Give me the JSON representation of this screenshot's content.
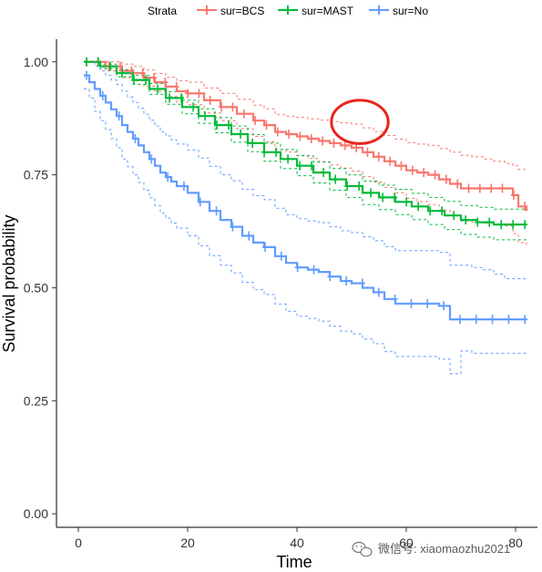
{
  "chart_data": {
    "type": "line",
    "subtype": "kaplan-meier survival curve",
    "xlabel": "Time",
    "ylabel": "Survival probability",
    "xlim": [
      -4,
      84
    ],
    "ylim": [
      -0.03,
      1.05
    ],
    "x_ticks": [
      0,
      20,
      40,
      60,
      80
    ],
    "x_tick_labels": [
      "0",
      "20",
      "40",
      "60",
      "80"
    ],
    "y_ticks": [
      0,
      0.25,
      0.5,
      0.75,
      1.0
    ],
    "y_tick_labels": [
      "0.00",
      "0.25",
      "0.50",
      "0.75",
      "1.00"
    ],
    "grid": false,
    "legend": {
      "position": "top",
      "title": "Strata",
      "entries": [
        "sur=BCS",
        "sur=MAST",
        "sur=No"
      ]
    },
    "series": [
      {
        "name": "sur=BCS",
        "color": "#F8766D",
        "x": [
          1,
          5,
          8,
          10,
          12,
          14,
          16,
          18,
          20,
          23,
          26,
          29,
          32,
          34,
          36,
          38,
          40,
          42,
          44,
          46,
          48,
          50,
          52,
          54,
          56,
          58,
          60,
          62,
          64,
          66,
          68,
          70,
          72,
          74,
          76,
          78,
          79.5,
          80.5,
          82
        ],
        "y": [
          1.0,
          0.99,
          0.98,
          0.975,
          0.965,
          0.955,
          0.945,
          0.935,
          0.93,
          0.915,
          0.9,
          0.885,
          0.87,
          0.86,
          0.845,
          0.84,
          0.835,
          0.83,
          0.825,
          0.82,
          0.815,
          0.81,
          0.8,
          0.79,
          0.78,
          0.77,
          0.76,
          0.755,
          0.75,
          0.74,
          0.73,
          0.72,
          0.72,
          0.72,
          0.72,
          0.72,
          0.705,
          0.68,
          0.67
        ],
        "upper": [
          1.0,
          1.0,
          0.995,
          0.99,
          0.982,
          0.974,
          0.966,
          0.958,
          0.955,
          0.942,
          0.93,
          0.917,
          0.904,
          0.896,
          0.883,
          0.88,
          0.877,
          0.874,
          0.871,
          0.868,
          0.865,
          0.862,
          0.854,
          0.846,
          0.837,
          0.829,
          0.821,
          0.818,
          0.815,
          0.808,
          0.8,
          0.793,
          0.79,
          0.785,
          0.78,
          0.775,
          0.77,
          0.762,
          0.76
        ],
        "lower": [
          1.0,
          0.98,
          0.965,
          0.958,
          0.946,
          0.935,
          0.923,
          0.911,
          0.905,
          0.887,
          0.87,
          0.852,
          0.835,
          0.823,
          0.806,
          0.8,
          0.793,
          0.786,
          0.779,
          0.772,
          0.765,
          0.758,
          0.746,
          0.734,
          0.722,
          0.71,
          0.698,
          0.691,
          0.684,
          0.672,
          0.66,
          0.648,
          0.646,
          0.643,
          0.64,
          0.637,
          0.62,
          0.6,
          0.595
        ]
      },
      {
        "name": "sur=MAST",
        "color": "#00BA38",
        "x": [
          1,
          4,
          7,
          10,
          13,
          16,
          19,
          22,
          25,
          28,
          31,
          34,
          37,
          40,
          43,
          46,
          49,
          52,
          55,
          58,
          61,
          64,
          67,
          70,
          73,
          76,
          79,
          82
        ],
        "y": [
          1.0,
          0.99,
          0.975,
          0.96,
          0.94,
          0.92,
          0.9,
          0.88,
          0.86,
          0.84,
          0.82,
          0.8,
          0.785,
          0.77,
          0.755,
          0.74,
          0.725,
          0.71,
          0.7,
          0.69,
          0.68,
          0.67,
          0.66,
          0.65,
          0.645,
          0.64,
          0.64,
          0.64
        ],
        "upper": [
          1.0,
          0.995,
          0.983,
          0.97,
          0.952,
          0.934,
          0.915,
          0.896,
          0.877,
          0.858,
          0.839,
          0.82,
          0.806,
          0.792,
          0.778,
          0.764,
          0.75,
          0.736,
          0.727,
          0.718,
          0.709,
          0.7,
          0.691,
          0.682,
          0.678,
          0.674,
          0.674,
          0.674
        ],
        "lower": [
          1.0,
          0.985,
          0.967,
          0.95,
          0.928,
          0.906,
          0.885,
          0.864,
          0.843,
          0.822,
          0.801,
          0.78,
          0.764,
          0.748,
          0.732,
          0.716,
          0.7,
          0.684,
          0.673,
          0.662,
          0.651,
          0.64,
          0.629,
          0.618,
          0.612,
          0.606,
          0.606,
          0.606
        ]
      },
      {
        "name": "sur=No",
        "color": "#619CFF",
        "x": [
          1,
          2,
          3,
          4,
          5,
          6,
          7,
          8,
          9,
          10,
          11,
          12,
          13,
          14,
          15,
          16,
          17,
          18,
          20,
          22,
          24,
          26,
          28,
          30,
          32,
          34,
          36,
          38,
          40,
          42,
          44,
          46,
          48,
          50,
          52,
          54,
          56,
          58,
          60,
          62,
          64,
          66,
          68,
          70,
          72,
          74,
          76,
          78,
          80,
          82
        ],
        "y": [
          0.97,
          0.955,
          0.94,
          0.925,
          0.91,
          0.895,
          0.88,
          0.86,
          0.845,
          0.83,
          0.815,
          0.8,
          0.785,
          0.77,
          0.755,
          0.745,
          0.735,
          0.725,
          0.71,
          0.69,
          0.67,
          0.65,
          0.635,
          0.615,
          0.6,
          0.59,
          0.57,
          0.555,
          0.545,
          0.54,
          0.535,
          0.525,
          0.515,
          0.51,
          0.5,
          0.49,
          0.475,
          0.465,
          0.465,
          0.465,
          0.465,
          0.46,
          0.43,
          0.43,
          0.43,
          0.43,
          0.43,
          0.43,
          0.43,
          0.43
        ],
        "upper": [
          1.0,
          1.0,
          0.99,
          0.98,
          0.97,
          0.96,
          0.95,
          0.935,
          0.922,
          0.91,
          0.897,
          0.884,
          0.871,
          0.858,
          0.845,
          0.836,
          0.827,
          0.818,
          0.805,
          0.787,
          0.769,
          0.75,
          0.737,
          0.718,
          0.704,
          0.695,
          0.676,
          0.662,
          0.653,
          0.648,
          0.644,
          0.635,
          0.626,
          0.622,
          0.613,
          0.604,
          0.591,
          0.582,
          0.582,
          0.582,
          0.582,
          0.578,
          0.55,
          0.55,
          0.545,
          0.54,
          0.53,
          0.52,
          0.52,
          0.52
        ],
        "lower": [
          0.94,
          0.92,
          0.89,
          0.87,
          0.85,
          0.83,
          0.81,
          0.785,
          0.768,
          0.75,
          0.733,
          0.716,
          0.699,
          0.682,
          0.665,
          0.654,
          0.643,
          0.632,
          0.615,
          0.593,
          0.571,
          0.55,
          0.533,
          0.512,
          0.496,
          0.485,
          0.464,
          0.448,
          0.437,
          0.432,
          0.426,
          0.415,
          0.404,
          0.398,
          0.387,
          0.376,
          0.359,
          0.348,
          0.348,
          0.348,
          0.348,
          0.342,
          0.31,
          0.36,
          0.355,
          0.355,
          0.355,
          0.355,
          0.355,
          0.355
        ]
      }
    ],
    "annotations": [
      {
        "type": "ellipse-highlight",
        "color": "#E8251C",
        "x_center": 51.5,
        "y_center": 0.867,
        "x_radius": 5.2,
        "y_radius": 0.048
      }
    ]
  },
  "watermark": {
    "text": "微信号: xiaomaozhu2021",
    "icon": "wechat-icon"
  }
}
